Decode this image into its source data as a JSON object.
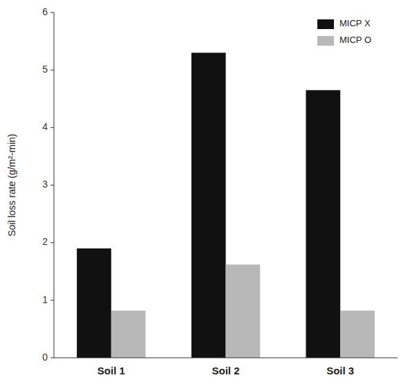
{
  "chart_data": {
    "type": "bar",
    "categories": [
      "Soil 1",
      "Soil 2",
      "Soil 3"
    ],
    "series": [
      {
        "name": "MICP X",
        "color": "#111111",
        "values": [
          1.9,
          5.3,
          4.65
        ]
      },
      {
        "name": "MICP O",
        "color": "#b8b8b8",
        "values": [
          0.82,
          1.62,
          0.82
        ]
      }
    ],
    "ylabel": "Soil loss rate (g/m²-min)",
    "ylim": [
      0,
      6
    ],
    "yticks": [
      0,
      1,
      2,
      3,
      4,
      5,
      6
    ],
    "legend": "upper right"
  }
}
